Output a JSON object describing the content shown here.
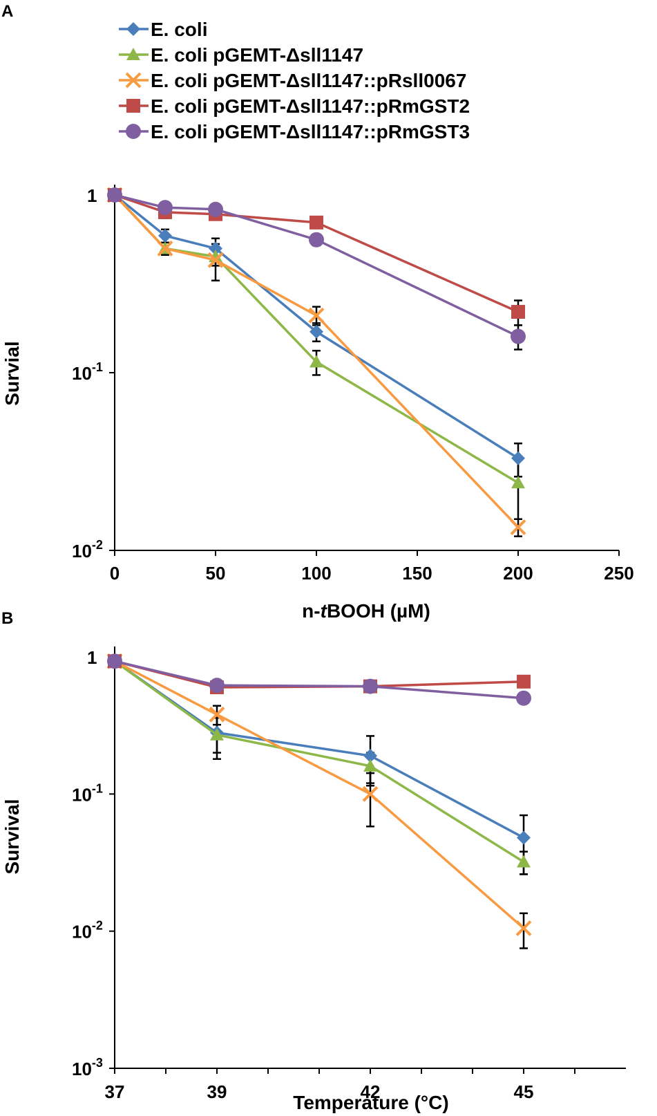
{
  "series_styles": [
    {
      "name": "E. coli",
      "color": "#4A7EBB",
      "marker": "diamond"
    },
    {
      "name": "E. coli pGEMT-Δsll1147",
      "color": "#8DB848",
      "marker": "triangle"
    },
    {
      "name": "E. coli pGEMT-Δsll1147::pRsll0067",
      "color": "#F79A42",
      "marker": "x"
    },
    {
      "name": "E. coli pGEMT-Δsll1147::pRmGST2",
      "color": "#BE4B48",
      "marker": "square"
    },
    {
      "name": "E. coli pGEMT-Δsll1147::pRmGST3",
      "color": "#7F5FA0",
      "marker": "circle"
    }
  ],
  "chart_data": [
    {
      "type": "line",
      "panel": "A",
      "title": "",
      "xlabel_prefix": "n-",
      "xlabel_italic": "t",
      "xlabel_suffix": "BOOH (µM)",
      "ylabel": "Survial",
      "xlim": [
        0,
        250
      ],
      "xticks": [
        0,
        50,
        100,
        150,
        200,
        250
      ],
      "xtick_labels": [
        "0",
        "50",
        "100",
        "150",
        "200",
        "250"
      ],
      "yscale": "log",
      "ylim": [
        0.01,
        1.3
      ],
      "yticks": [
        {
          "value": 1,
          "base": "1",
          "exp": ""
        },
        {
          "value": 0.1,
          "base": "10",
          "exp": "-1"
        },
        {
          "value": 0.01,
          "base": "10",
          "exp": "-2"
        }
      ],
      "legend": "top-left, above plot",
      "series": [
        {
          "name": "E. coli",
          "x": [
            0,
            25,
            50,
            100,
            200
          ],
          "values": [
            1.0,
            0.59,
            0.5,
            0.17,
            0.033
          ],
          "err": [
            0,
            0.05,
            0.07,
            0.02,
            0.007
          ]
        },
        {
          "name": "E. coli pGEMT-Δsll1147",
          "x": [
            0,
            25,
            50,
            100,
            200
          ],
          "values": [
            1.0,
            0.5,
            0.45,
            0.115,
            0.024
          ],
          "err": [
            0,
            0.04,
            0.05,
            0.018,
            0.009
          ]
        },
        {
          "name": "E. coli pGEMT-Δsll1147::pRsll0067",
          "x": [
            0,
            25,
            50,
            100,
            200
          ],
          "values": [
            1.0,
            0.5,
            0.43,
            0.21,
            0.0135
          ],
          "err": [
            0,
            0.04,
            0.1,
            0.025,
            0.0015
          ]
        },
        {
          "name": "E. coli pGEMT-Δsll1147::pRmGST2",
          "x": [
            0,
            25,
            50,
            100,
            200
          ],
          "values": [
            1.0,
            0.8,
            0.78,
            0.7,
            0.22
          ],
          "err": [
            0,
            0.06,
            0.05,
            0.04,
            0.035
          ]
        },
        {
          "name": "E. coli pGEMT-Δsll1147::pRmGST3",
          "x": [
            0,
            25,
            50,
            100,
            200
          ],
          "values": [
            1.0,
            0.85,
            0.83,
            0.56,
            0.16
          ],
          "err": [
            0,
            0.05,
            0.04,
            0.04,
            0.025
          ]
        }
      ]
    },
    {
      "type": "line",
      "panel": "B",
      "title": "",
      "xlabel": "Temperature (°C)",
      "ylabel": "Survival",
      "xlim": [
        37,
        47
      ],
      "xticks": [
        37,
        39,
        42,
        45
      ],
      "xtick_labels": [
        "37",
        "39",
        "42",
        "45"
      ],
      "xminor_ticks": [
        38,
        40,
        41,
        43,
        44,
        46
      ],
      "yscale": "log",
      "ylim": [
        0.001,
        1.3
      ],
      "yticks": [
        {
          "value": 1,
          "base": "1",
          "exp": ""
        },
        {
          "value": 0.1,
          "base": "10",
          "exp": "-1"
        },
        {
          "value": 0.01,
          "base": "10",
          "exp": "-2"
        },
        {
          "value": 0.001,
          "base": "10",
          "exp": "-3"
        }
      ],
      "series": [
        {
          "name": "E. coli",
          "x": [
            37,
            39,
            42,
            45
          ],
          "values": [
            0.93,
            0.28,
            0.19,
            0.048
          ],
          "err": [
            0,
            0.08,
            0.075,
            0.022
          ]
        },
        {
          "name": "E. coli pGEMT-Δsll1147",
          "x": [
            37,
            39,
            42,
            45
          ],
          "values": [
            0.93,
            0.27,
            0.16,
            0.032
          ],
          "err": [
            0,
            0.09,
            0.04,
            0.006
          ]
        },
        {
          "name": "E. coli pGEMT-Δsll1147::pRsll0067",
          "x": [
            37,
            39,
            42,
            45
          ],
          "values": [
            0.93,
            0.38,
            0.1,
            0.0105
          ],
          "err": [
            0,
            0.06,
            0.042,
            0.003
          ]
        },
        {
          "name": "E. coli pGEMT-Δsll1147::pRmGST2",
          "x": [
            37,
            39,
            42,
            45
          ],
          "values": [
            0.93,
            0.6,
            0.61,
            0.66
          ],
          "err": [
            0,
            0.03,
            0.03,
            0.03
          ]
        },
        {
          "name": "E. coli pGEMT-Δsll1147::pRmGST3",
          "x": [
            37,
            39,
            42,
            45
          ],
          "values": [
            0.93,
            0.62,
            0.61,
            0.5
          ],
          "err": [
            0,
            0.03,
            0.03,
            0.03
          ]
        }
      ]
    }
  ]
}
